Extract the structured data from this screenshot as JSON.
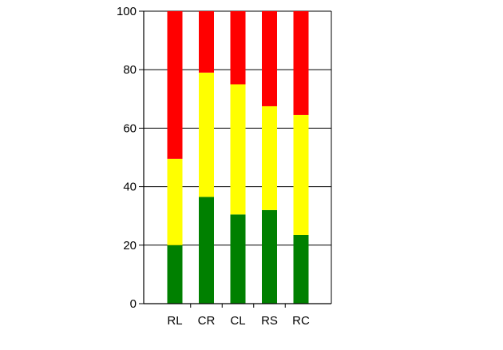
{
  "chart_data": {
    "type": "bar",
    "stacked": true,
    "title": "",
    "xlabel": "",
    "ylabel": "",
    "categories": [
      "RL",
      "CR",
      "CL",
      "RS",
      "RC"
    ],
    "ylim": [
      0,
      100
    ],
    "yticks": [
      0,
      20,
      40,
      60,
      80,
      100
    ],
    "grid": true,
    "legend": "none",
    "series": [
      {
        "color": "#008000",
        "values": [
          20,
          36.5,
          30.5,
          32,
          23.5
        ]
      },
      {
        "color": "#ffff00",
        "values": [
          29.5,
          42.5,
          44.5,
          35.5,
          41
        ]
      },
      {
        "color": "#ff0000",
        "values": [
          50.5,
          21,
          25,
          32.5,
          35.5
        ]
      }
    ]
  }
}
